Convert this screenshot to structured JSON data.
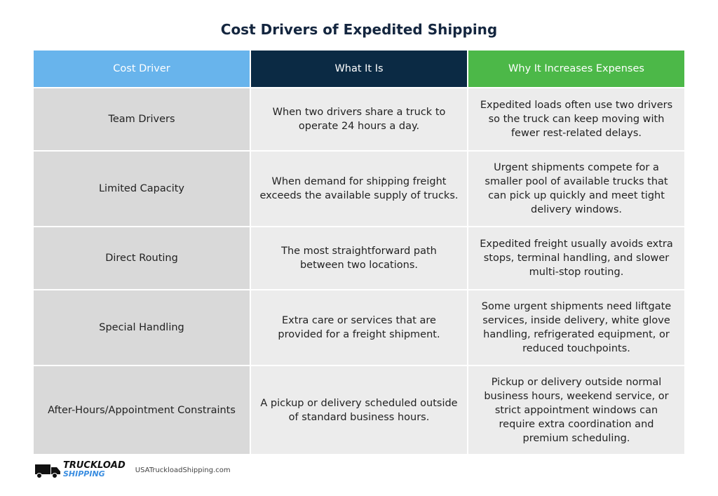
{
  "header": {
    "title": "Cost Drivers of Expedited Shipping"
  },
  "table": {
    "columns": [
      "Cost Driver",
      "What It Is",
      "Why It Increases Expenses"
    ],
    "rows": [
      [
        "Team Drivers",
        "When two drivers share a truck to operate 24 hours a day.",
        "Expedited loads often use two drivers so the truck can keep moving with fewer rest-related delays."
      ],
      [
        "Limited Capacity",
        "When demand for shipping freight exceeds the available supply of trucks.",
        "Urgent shipments compete for a smaller pool of available trucks that can pick up quickly and meet tight delivery windows."
      ],
      [
        "Direct Routing",
        "The most straightforward path between two locations.",
        "Expedited freight usually avoids extra stops, terminal handling, and slower multi-stop routing."
      ],
      [
        "Special Handling",
        "Extra care or services that are provided for a freight shipment.",
        "Some urgent shipments need liftgate services, inside delivery, white glove handling, refrigerated equipment, or reduced touchpoints."
      ],
      [
        "After-Hours/Appointment Constraints",
        "A pickup or delivery scheduled outside of standard business hours.",
        "Pickup or delivery outside normal business hours, weekend service, or strict appointment windows can require extra coordination and premium scheduling."
      ]
    ]
  },
  "footer": {
    "logo_line1": "TRUCKLOAD",
    "logo_line2": "SHIPPING",
    "url": "USATruckloadShipping.com"
  }
}
